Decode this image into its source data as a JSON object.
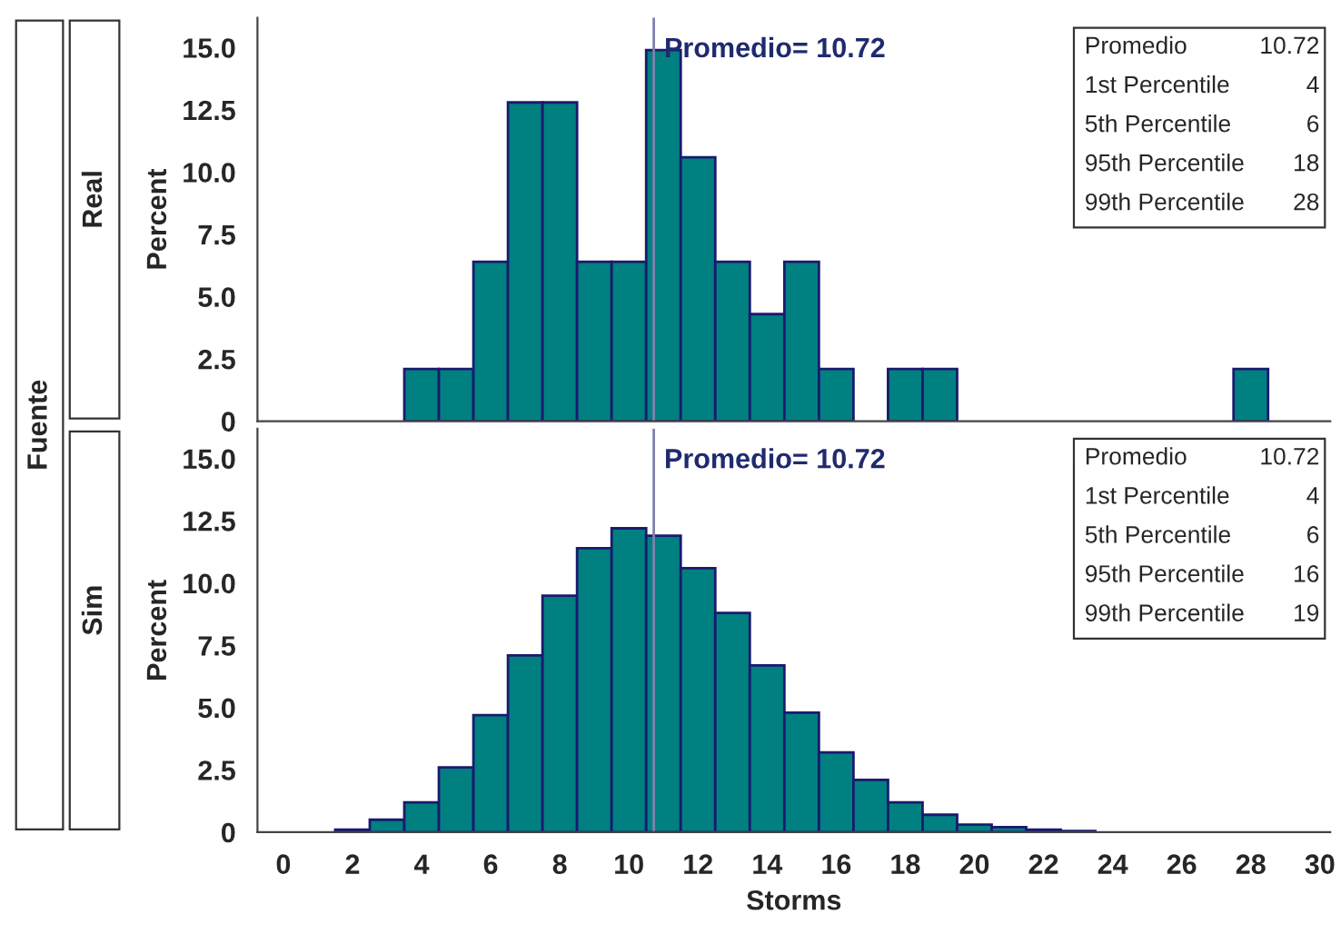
{
  "chart_data": [
    {
      "type": "histogram",
      "subtitle": "Real",
      "legend_title": "Fuente",
      "ylabel": "Percent",
      "bins": [
        -0.5,
        0.5,
        1.5,
        2.5,
        3.5,
        4.5,
        5.5,
        6.5,
        7.5,
        8.5,
        9.5,
        10.5,
        11.5,
        12.5,
        13.5,
        14.5,
        15.5,
        16.5,
        17.5,
        18.5,
        19.5,
        20.5,
        21.5,
        22.5,
        23.5,
        24.5,
        25.5,
        26.5,
        27.5,
        28.5,
        29.5,
        30.5
      ],
      "values": [
        0,
        0,
        0,
        0,
        2.1,
        2.1,
        6.4,
        12.8,
        12.8,
        6.4,
        6.4,
        14.9,
        10.6,
        6.4,
        4.3,
        6.4,
        2.1,
        0,
        2.1,
        2.1,
        0,
        0,
        0,
        0,
        0,
        0,
        0,
        0,
        2.1,
        0,
        0
      ],
      "color": "#008080",
      "xlim": [
        -0.75,
        30.3
      ],
      "xticks": [
        0,
        2,
        4,
        6,
        8,
        10,
        12,
        14,
        16,
        18,
        20,
        22,
        24,
        26,
        28,
        30
      ],
      "ylim": [
        0,
        16.2
      ],
      "yticks": [
        {
          "value": 0,
          "label": "0"
        },
        {
          "value": 2.5,
          "label": "2.5"
        },
        {
          "value": 5,
          "label": "5.0"
        },
        {
          "value": 7.5,
          "label": "7.5"
        },
        {
          "value": 10,
          "label": "10.0"
        },
        {
          "value": 12.5,
          "label": "12.5"
        },
        {
          "value": 15,
          "label": "15.0"
        }
      ],
      "tick_labels": "y",
      "grid": false,
      "ref_lines": [
        {
          "axis": "x",
          "value": 10.72,
          "label": "Promedio= 10.72",
          "color": "#8080b0"
        }
      ],
      "annotations": [
        "Promedio",
        "10.72",
        "1st Percentile",
        "4",
        "5th Percentile",
        "6",
        "95th Percentile",
        "18",
        "99th Percentile",
        "28"
      ]
    },
    {
      "type": "histogram",
      "subtitle": "Sim",
      "ylabel": "Percent",
      "xlabel": "Storms",
      "bins": [
        -0.5,
        0.5,
        1.5,
        2.5,
        3.5,
        4.5,
        5.5,
        6.5,
        7.5,
        8.5,
        9.5,
        10.5,
        11.5,
        12.5,
        13.5,
        14.5,
        15.5,
        16.5,
        17.5,
        18.5,
        19.5,
        20.5,
        21.5,
        22.5,
        23.5,
        24.5,
        25.5,
        26.5,
        27.5,
        28.5,
        29.5,
        30.5
      ],
      "values": [
        0,
        0,
        0.1,
        0.5,
        1.2,
        2.6,
        4.7,
        7.1,
        9.5,
        11.4,
        12.2,
        11.9,
        10.6,
        8.8,
        6.7,
        4.8,
        3.2,
        2.1,
        1.2,
        0.7,
        0.3,
        0.2,
        0.1,
        0.05,
        0,
        0,
        0,
        0,
        0,
        0,
        0
      ],
      "color": "#008080",
      "xlim": [
        -0.75,
        30.3
      ],
      "xticks": [
        0,
        2,
        4,
        6,
        8,
        10,
        12,
        14,
        16,
        18,
        20,
        22,
        24,
        26,
        28,
        30
      ],
      "ylim": [
        0,
        16.2
      ],
      "yticks": [
        {
          "value": 0,
          "label": "0"
        },
        {
          "value": 2.5,
          "label": "2.5"
        },
        {
          "value": 5,
          "label": "5.0"
        },
        {
          "value": 7.5,
          "label": "7.5"
        },
        {
          "value": 10,
          "label": "10.0"
        },
        {
          "value": 12.5,
          "label": "12.5"
        },
        {
          "value": 15,
          "label": "15.0"
        }
      ],
      "grid": false,
      "ref_lines": [
        {
          "axis": "x",
          "value": 10.72,
          "label": "Promedio= 10.72",
          "color": "#8080b0"
        }
      ],
      "annotations": [
        "Promedio",
        "10.72",
        "1st Percentile",
        "4",
        "5th Percentile",
        "6",
        "95th Percentile",
        "16",
        "99th Percentile",
        "19"
      ]
    }
  ]
}
